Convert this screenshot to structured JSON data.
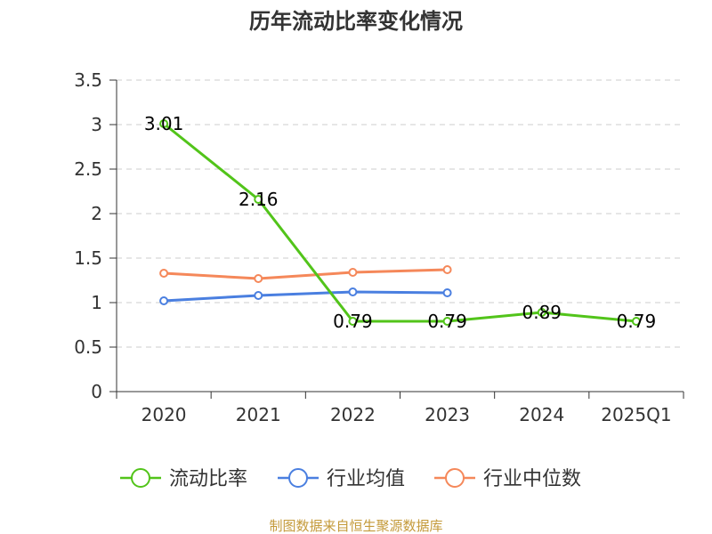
{
  "title": "历年流动比率变化情况",
  "source": "制图数据来自恒生聚源数据库",
  "colors": {
    "current_ratio": "#52c41a",
    "industry_mean": "#4a7fe0",
    "industry_median": "#f5885a",
    "grid": "#cccccc",
    "axis": "#333333"
  },
  "chart_data": {
    "type": "line",
    "title": "历年流动比率变化情况",
    "categories": [
      "2020",
      "2021",
      "2022",
      "2023",
      "2024",
      "2025Q1"
    ],
    "ylim": [
      0,
      3.5
    ],
    "yticks": [
      "0",
      "0.5",
      "1",
      "1.5",
      "2",
      "2.5",
      "3",
      "3.5"
    ],
    "grid": true,
    "legend_position": "bottom",
    "series": [
      {
        "name": "流动比率",
        "color": "#52c41a",
        "values": [
          3.01,
          2.16,
          0.79,
          0.79,
          0.89,
          0.79
        ],
        "labels": [
          "3.01",
          "2.16",
          "0.79",
          "0.79",
          "0.89",
          "0.79"
        ]
      },
      {
        "name": "行业均值",
        "color": "#4a7fe0",
        "values": [
          1.02,
          1.08,
          1.12,
          1.11,
          null,
          null
        ]
      },
      {
        "name": "行业中位数",
        "color": "#f5885a",
        "values": [
          1.33,
          1.27,
          1.34,
          1.37,
          null,
          null
        ]
      }
    ]
  }
}
